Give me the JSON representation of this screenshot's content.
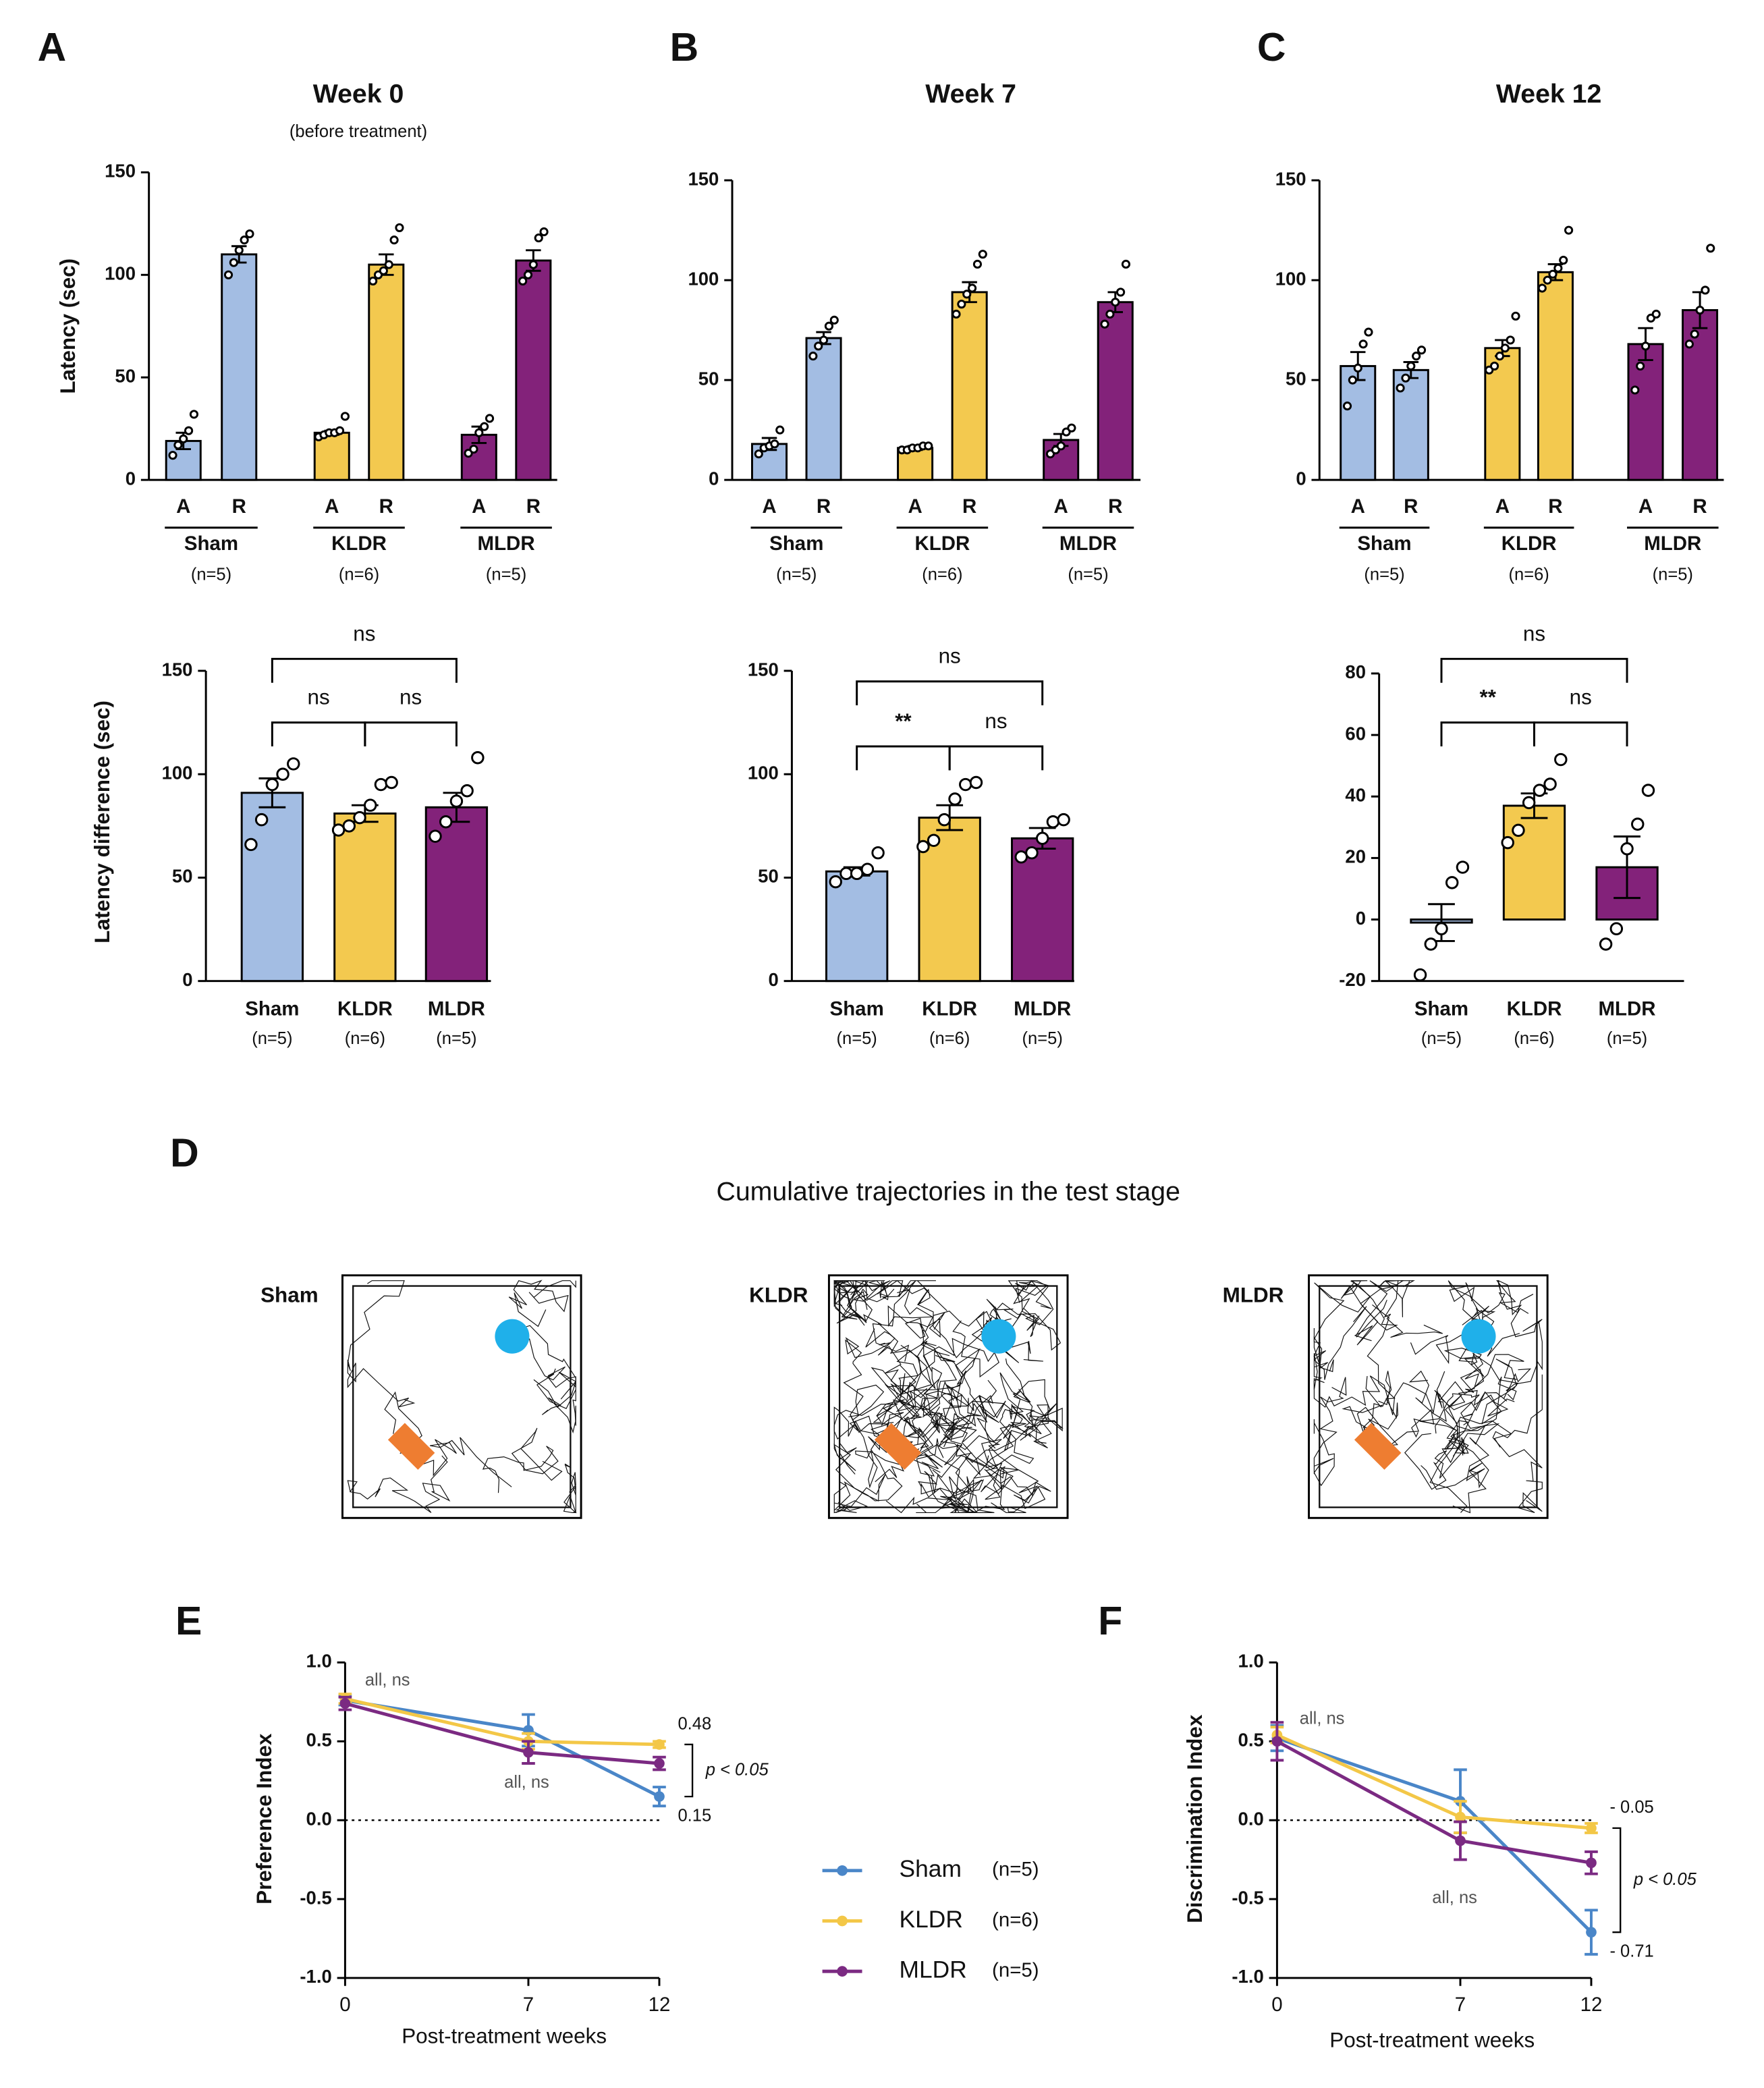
{
  "chart_data": [
    {
      "type": "bar",
      "panel": "A",
      "title": "Week 0",
      "subtitle": "(before treatment)",
      "y_label": "Latency (sec)",
      "categories": [
        "A",
        "R",
        "A",
        "R",
        "A",
        "R"
      ],
      "groups": [
        "Sham",
        "KLDR",
        "MLDR"
      ],
      "group_n_labels": [
        "(n=5)",
        "(n=6)",
        "(n=5)"
      ],
      "colors": [
        "#a3bde3",
        "#a3bde3",
        "#f3c94f",
        "#f3c94f",
        "#83227a",
        "#83227a"
      ],
      "values": [
        19,
        110,
        23,
        105,
        22,
        107
      ],
      "errors": [
        4,
        4,
        1,
        5,
        4,
        5
      ],
      "points": [
        [
          12,
          17,
          20,
          24,
          32
        ],
        [
          100,
          106,
          112,
          117,
          120
        ],
        [
          21,
          22,
          23,
          23,
          24,
          31
        ],
        [
          97,
          100,
          102,
          105,
          117,
          123
        ],
        [
          13,
          15,
          23,
          26,
          30
        ],
        [
          97,
          100,
          105,
          118,
          121
        ]
      ],
      "ylim": [
        0,
        150
      ],
      "yticks": [
        0,
        50,
        100,
        150
      ]
    },
    {
      "type": "bar",
      "panel": "B",
      "title": "Week 7",
      "categories": [
        "A",
        "R",
        "A",
        "R",
        "A",
        "R"
      ],
      "groups": [
        "Sham",
        "KLDR",
        "MLDR"
      ],
      "group_n_labels": [
        "(n=5)",
        "(n=6)",
        "(n=5)"
      ],
      "colors": [
        "#a3bde3",
        "#a3bde3",
        "#f3c94f",
        "#f3c94f",
        "#83227a",
        "#83227a"
      ],
      "values": [
        18,
        71,
        16,
        94,
        20,
        89
      ],
      "errors": [
        3,
        3,
        1,
        5,
        3,
        5
      ],
      "points": [
        [
          13,
          16,
          17,
          18,
          25
        ],
        [
          62,
          67,
          70,
          77,
          80
        ],
        [
          15,
          15,
          16,
          16,
          17,
          17
        ],
        [
          83,
          88,
          93,
          96,
          108,
          113
        ],
        [
          13,
          15,
          17,
          24,
          26
        ],
        [
          78,
          83,
          89,
          94,
          108
        ]
      ],
      "ylim": [
        0,
        150
      ],
      "yticks": [
        0,
        50,
        100,
        150
      ]
    },
    {
      "type": "bar",
      "panel": "C",
      "title": "Week 12",
      "categories": [
        "A",
        "R",
        "A",
        "R",
        "A",
        "R"
      ],
      "groups": [
        "Sham",
        "KLDR",
        "MLDR"
      ],
      "group_n_labels": [
        "(n=5)",
        "(n=6)",
        "(n=5)"
      ],
      "colors": [
        "#a3bde3",
        "#a3bde3",
        "#f3c94f",
        "#f3c94f",
        "#83227a",
        "#83227a"
      ],
      "values": [
        57,
        55,
        66,
        104,
        68,
        85
      ],
      "errors": [
        7,
        4,
        4,
        4,
        8,
        9
      ],
      "points": [
        [
          37,
          50,
          56,
          68,
          74
        ],
        [
          46,
          51,
          57,
          62,
          65
        ],
        [
          55,
          57,
          62,
          66,
          70,
          82
        ],
        [
          96,
          100,
          103,
          106,
          110,
          125
        ],
        [
          45,
          57,
          67,
          81,
          83
        ],
        [
          68,
          73,
          85,
          95,
          116
        ]
      ],
      "ylim": [
        0,
        150
      ],
      "yticks": [
        0,
        50,
        100,
        150
      ]
    },
    {
      "type": "bar",
      "y_label": "Latency difference (sec)",
      "categories": [
        "Sham",
        "KLDR",
        "MLDR"
      ],
      "n_labels": [
        "(n=5)",
        "(n=6)",
        "(n=5)"
      ],
      "colors": [
        "#a3bde3",
        "#f3c94f",
        "#83227a"
      ],
      "values": [
        91,
        81,
        84
      ],
      "errors": [
        7,
        4,
        7
      ],
      "points": [
        [
          66,
          78,
          95,
          100,
          105
        ],
        [
          73,
          75,
          79,
          85,
          95,
          96
        ],
        [
          70,
          77,
          87,
          92,
          108
        ]
      ],
      "comparisons": [
        {
          "groups": [
            "Sham",
            "KLDR"
          ],
          "label": "ns"
        },
        {
          "groups": [
            "KLDR",
            "MLDR"
          ],
          "label": "ns"
        },
        {
          "groups": [
            "Sham",
            "MLDR"
          ],
          "label": "ns"
        }
      ],
      "ylim": [
        0,
        150
      ],
      "yticks": [
        0,
        50,
        100,
        150
      ]
    },
    {
      "type": "bar",
      "categories": [
        "Sham",
        "KLDR",
        "MLDR"
      ],
      "n_labels": [
        "(n=5)",
        "(n=6)",
        "(n=5)"
      ],
      "colors": [
        "#a3bde3",
        "#f3c94f",
        "#83227a"
      ],
      "values": [
        53,
        79,
        69
      ],
      "errors": [
        2,
        6,
        5
      ],
      "points": [
        [
          48,
          52,
          52,
          54,
          62
        ],
        [
          65,
          68,
          78,
          88,
          95,
          96
        ],
        [
          60,
          62,
          69,
          77,
          78
        ]
      ],
      "comparisons": [
        {
          "groups": [
            "Sham",
            "KLDR"
          ],
          "label": "**"
        },
        {
          "groups": [
            "KLDR",
            "MLDR"
          ],
          "label": "ns"
        },
        {
          "groups": [
            "Sham",
            "MLDR"
          ],
          "label": "ns"
        }
      ],
      "ylim": [
        0,
        150
      ],
      "yticks": [
        0,
        50,
        100,
        150
      ]
    },
    {
      "type": "bar",
      "categories": [
        "Sham",
        "KLDR",
        "MLDR"
      ],
      "n_labels": [
        "(n=5)",
        "(n=6)",
        "(n=5)"
      ],
      "colors": [
        "#a3bde3",
        "#f3c94f",
        "#83227a"
      ],
      "values": [
        -1,
        37,
        17
      ],
      "errors": [
        6,
        4,
        10
      ],
      "points": [
        [
          -18,
          -8,
          -3,
          12,
          17
        ],
        [
          25,
          29,
          38,
          42,
          44,
          52
        ],
        [
          -8,
          -3,
          23,
          31,
          42
        ]
      ],
      "comparisons": [
        {
          "groups": [
            "Sham",
            "KLDR"
          ],
          "label": "**"
        },
        {
          "groups": [
            "KLDR",
            "MLDR"
          ],
          "label": "ns"
        },
        {
          "groups": [
            "Sham",
            "MLDR"
          ],
          "label": "ns"
        }
      ],
      "ylim": [
        -20,
        80
      ],
      "yticks": [
        -20,
        0,
        20,
        40,
        60,
        80
      ]
    },
    {
      "type": "line",
      "panel": "E",
      "x_label": "Post-treatment weeks",
      "y_label": "Preference Index",
      "x": [
        0,
        7,
        12
      ],
      "xlim": [
        0,
        12
      ],
      "xticks": [
        0,
        7,
        12
      ],
      "ylim": [
        -1,
        1
      ],
      "yticks": [
        {
          "value": -1,
          "label": "-1.0"
        },
        {
          "value": -0.5,
          "label": "-0.5"
        },
        {
          "value": 0,
          "label": "0.0"
        },
        {
          "value": 0.5,
          "label": "0.5"
        },
        {
          "value": 1,
          "label": "1.0"
        }
      ],
      "series": [
        {
          "name": "Sham",
          "n_label": "(n=5)",
          "color": "#4a86c8",
          "values": [
            0.76,
            0.57,
            0.15
          ],
          "errors": [
            0.03,
            0.1,
            0.06
          ],
          "value_labels": [
            null,
            null,
            "0.15"
          ]
        },
        {
          "name": "KLDR",
          "n_label": "(n=6)",
          "color": "#f3c747",
          "values": [
            0.77,
            0.5,
            0.48
          ],
          "errors": [
            0.03,
            0.05,
            0.02
          ],
          "value_labels": [
            null,
            null,
            "0.48"
          ]
        },
        {
          "name": "MLDR",
          "n_label": "(n=5)",
          "color": "#7b2a82",
          "values": [
            0.74,
            0.43,
            0.36
          ],
          "errors": [
            0.04,
            0.07,
            0.04
          ]
        }
      ],
      "annotations": [
        "all, ns",
        "all, ns"
      ],
      "bracket_label": "p < 0.05"
    },
    {
      "type": "line",
      "panel": "F",
      "x_label": "Post-treatment weeks",
      "y_label": "Discrimination Index",
      "x": [
        0,
        7,
        12
      ],
      "xlim": [
        0,
        12
      ],
      "xticks": [
        0,
        7,
        12
      ],
      "ylim": [
        -1,
        1
      ],
      "yticks": [
        {
          "value": -1,
          "label": "-1.0"
        },
        {
          "value": -0.5,
          "label": "-0.5"
        },
        {
          "value": 0,
          "label": "0.0"
        },
        {
          "value": 0.5,
          "label": "0.5"
        },
        {
          "value": 1,
          "label": "1.0"
        }
      ],
      "series": [
        {
          "color": "#4a86c8",
          "values": [
            0.52,
            0.12,
            -0.71
          ],
          "errors": [
            0.08,
            0.2,
            0.14
          ],
          "value_labels": [
            null,
            null,
            "- 0.71"
          ]
        },
        {
          "color": "#f3c747",
          "values": [
            0.54,
            0.02,
            -0.05
          ],
          "errors": [
            0.05,
            0.1,
            0.03
          ],
          "value_labels": [
            null,
            null,
            "- 0.05"
          ]
        },
        {
          "color": "#7b2a82",
          "values": [
            0.5,
            -0.13,
            -0.27
          ],
          "errors": [
            0.12,
            0.12,
            0.07
          ]
        }
      ],
      "annotations": [
        "all, ns",
        "all, ns"
      ],
      "bracket_label": "p < 0.05"
    }
  ],
  "trajectories": {
    "panel": "D",
    "title": "Cumulative trajectories in the test stage",
    "arenas": [
      "Sham",
      "KLDR",
      "MLDR"
    ]
  }
}
